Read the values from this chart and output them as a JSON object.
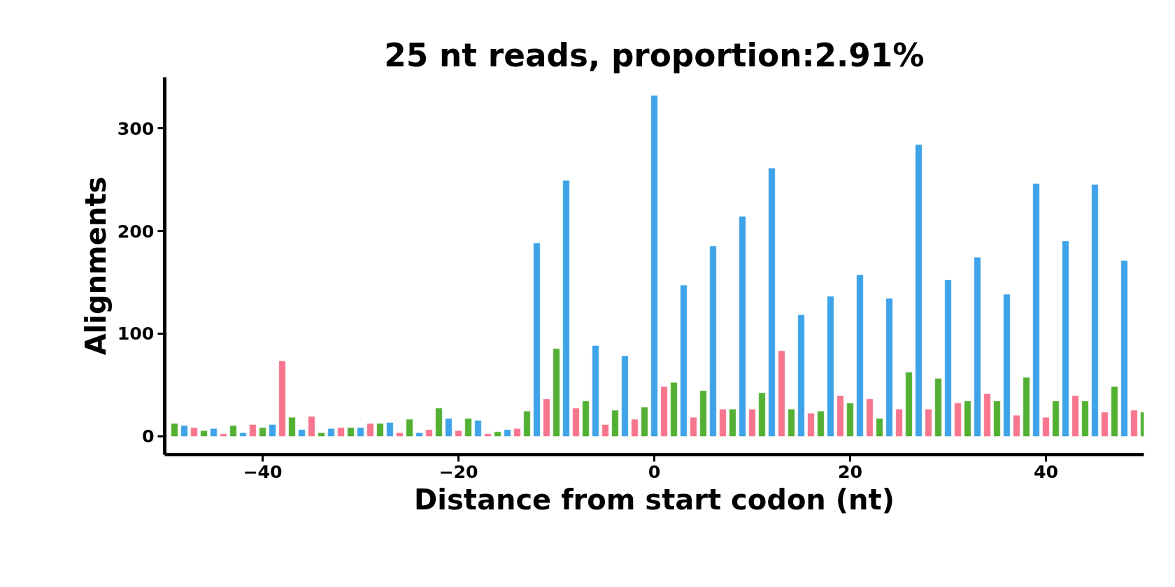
{
  "chart_data": {
    "type": "bar",
    "title": "25 nt reads, proportion:2.91%",
    "xlabel": "Distance from start codon (nt)",
    "ylabel": "Alignments",
    "series": [
      {
        "color": "#3ea3e8",
        "x": [
          -48,
          -45,
          -42,
          -39,
          -36,
          -33,
          -30,
          -27,
          -24,
          -21,
          -18,
          -15,
          -12,
          -9,
          -6,
          -3,
          0,
          3,
          6,
          9,
          12,
          15,
          18,
          21,
          24,
          27,
          30,
          33,
          36,
          39,
          42,
          45,
          48
        ],
        "values": [
          10,
          7,
          3,
          11,
          6,
          7,
          8,
          13,
          3,
          17,
          15,
          6,
          188,
          249,
          88,
          78,
          332,
          147,
          185,
          214,
          261,
          118,
          136,
          157,
          134,
          284,
          152,
          174,
          138,
          246,
          190,
          245,
          171
        ]
      },
      {
        "color": "#f7768e",
        "x": [
          -47,
          -44,
          -41,
          -38,
          -35,
          -32,
          -29,
          -26,
          -23,
          -20,
          -17,
          -14,
          -11,
          -8,
          -5,
          -2,
          1,
          4,
          7,
          10,
          13,
          16,
          19,
          22,
          25,
          28,
          31,
          34,
          37,
          40,
          43,
          46,
          49
        ],
        "values": [
          8,
          2,
          11,
          73,
          19,
          8,
          12,
          3,
          6,
          5,
          2,
          7,
          36,
          27,
          11,
          16,
          48,
          18,
          26,
          26,
          83,
          22,
          39,
          36,
          26,
          26,
          32,
          41,
          20,
          18,
          39,
          23,
          25
        ]
      },
      {
        "color": "#52b033",
        "x": [
          -49,
          -46,
          -43,
          -40,
          -37,
          -34,
          -31,
          -28,
          -25,
          -22,
          -19,
          -16,
          -13,
          -10,
          -7,
          -4,
          -1,
          2,
          5,
          8,
          11,
          14,
          17,
          20,
          23,
          26,
          29,
          32,
          35,
          38,
          41,
          44,
          47,
          50
        ],
        "values": [
          12,
          5,
          10,
          8,
          18,
          3,
          8,
          12,
          16,
          27,
          17,
          4,
          24,
          85,
          34,
          25,
          28,
          52,
          44,
          26,
          42,
          26,
          24,
          32,
          17,
          62,
          56,
          34,
          34,
          57,
          34,
          34,
          48,
          23
        ]
      }
    ],
    "xlim": [
      -50,
      50
    ],
    "xticks": [
      {
        "value": -40,
        "label": "−40"
      },
      {
        "value": -20,
        "label": "−20"
      },
      0,
      20,
      40
    ],
    "ylim": [
      -18,
      350
    ],
    "yticks": [
      0,
      100,
      200,
      300
    ],
    "grid": false
  }
}
